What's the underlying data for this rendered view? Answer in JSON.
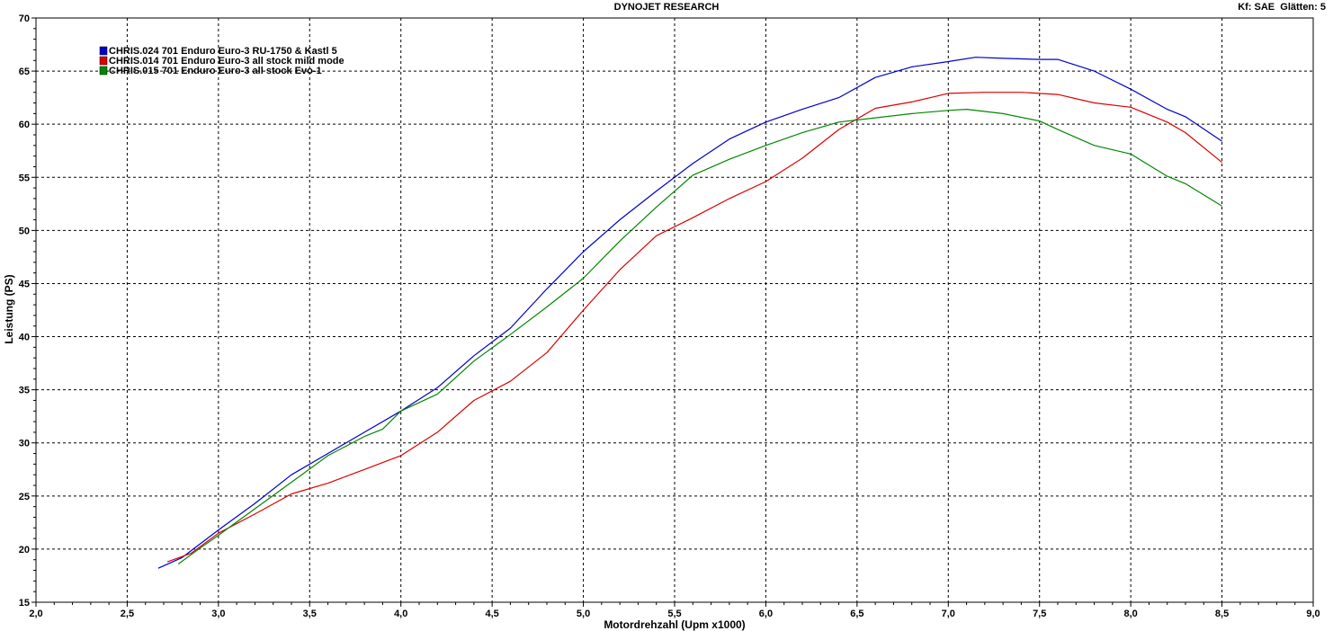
{
  "header": {
    "title": "DYNOJET RESEARCH",
    "corner": "Kf: SAE  Glätten: 5"
  },
  "chart_data": {
    "type": "line",
    "title": "DYNOJET RESEARCH",
    "xlabel": "Motordrehzahl (Upm x1000)",
    "ylabel": "Leistung (PS)",
    "xlim": [
      2.0,
      9.0
    ],
    "ylim": [
      15,
      70
    ],
    "xticks": [
      "2,0",
      "2,5",
      "3,0",
      "3,5",
      "4,0",
      "4,5",
      "5,0",
      "5,5",
      "6,0",
      "6,5",
      "7,0",
      "7,5",
      "8,0",
      "8,5",
      "9,0"
    ],
    "yticks": [
      "15",
      "20",
      "25",
      "30",
      "35",
      "40",
      "45",
      "50",
      "55",
      "60",
      "65",
      "70"
    ],
    "grid": true,
    "legend_position": "top-left",
    "series": [
      {
        "name": "CHRIS.024 701 Enduro Euro-3 RU-1750 & Kastl 5",
        "color": "#0000cc",
        "x": [
          2.67,
          2.8,
          3.0,
          3.2,
          3.4,
          3.6,
          3.8,
          4.0,
          4.2,
          4.4,
          4.6,
          4.8,
          5.0,
          5.2,
          5.4,
          5.6,
          5.8,
          6.0,
          6.2,
          6.4,
          6.6,
          6.8,
          7.0,
          7.15,
          7.3,
          7.5,
          7.6,
          7.8,
          8.0,
          8.2,
          8.3,
          8.5
        ],
        "y": [
          18.2,
          19.2,
          21.8,
          24.3,
          27.0,
          29.0,
          31.0,
          33.0,
          35.2,
          38.2,
          40.8,
          44.5,
          48.0,
          51.0,
          53.7,
          56.3,
          58.6,
          60.2,
          61.4,
          62.5,
          64.4,
          65.4,
          65.9,
          66.3,
          66.2,
          66.1,
          66.1,
          65.0,
          63.3,
          61.4,
          60.7,
          58.4
        ]
      },
      {
        "name": "CHRIS.014 701 Enduro Euro-3 all stock mild mode",
        "color": "#dd0000",
        "x": [
          2.72,
          2.85,
          3.0,
          3.2,
          3.4,
          3.6,
          3.8,
          4.0,
          4.2,
          4.4,
          4.6,
          4.8,
          5.0,
          5.2,
          5.4,
          5.6,
          5.8,
          6.0,
          6.2,
          6.4,
          6.6,
          6.8,
          7.0,
          7.2,
          7.4,
          7.6,
          7.8,
          8.0,
          8.2,
          8.3,
          8.5
        ],
        "y": [
          18.8,
          19.6,
          21.5,
          23.3,
          25.2,
          26.2,
          27.5,
          28.8,
          31.0,
          34.0,
          35.8,
          38.5,
          42.5,
          46.3,
          49.5,
          51.2,
          53.0,
          54.6,
          56.8,
          59.5,
          61.5,
          62.1,
          62.9,
          63.0,
          63.0,
          62.8,
          62.0,
          61.6,
          60.2,
          59.2,
          56.4
        ]
      },
      {
        "name": "CHRIS.015 701 Enduro Euro-3 all stock Evo-1",
        "color": "#008800",
        "x": [
          2.78,
          2.9,
          3.0,
          3.2,
          3.4,
          3.6,
          3.8,
          3.9,
          4.0,
          4.2,
          4.4,
          4.6,
          4.8,
          5.0,
          5.2,
          5.4,
          5.6,
          5.8,
          6.0,
          6.2,
          6.4,
          6.6,
          6.8,
          7.0,
          7.1,
          7.3,
          7.5,
          7.6,
          7.8,
          8.0,
          8.2,
          8.3,
          8.5
        ],
        "y": [
          18.6,
          20.1,
          21.3,
          23.8,
          26.3,
          28.8,
          30.6,
          31.3,
          33.0,
          34.6,
          37.7,
          40.2,
          42.8,
          45.5,
          49.0,
          52.2,
          55.2,
          56.7,
          58.0,
          59.2,
          60.2,
          60.6,
          61.0,
          61.3,
          61.4,
          61.0,
          60.3,
          59.5,
          58.0,
          57.2,
          55.1,
          54.4,
          52.3
        ]
      }
    ]
  }
}
